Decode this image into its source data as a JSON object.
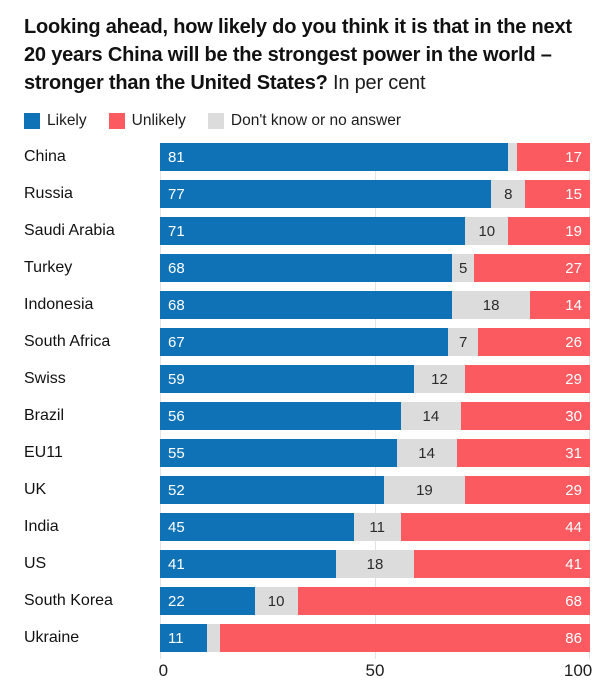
{
  "title": {
    "question": "Looking ahead, how likely do you think it is that in the next 20 years China will be the strongest power in the world – stronger than the United States?",
    "suffix": "In per cent"
  },
  "legend": {
    "items": [
      {
        "key": "likely",
        "label": "Likely",
        "color": "#0F72B7"
      },
      {
        "key": "unlikely",
        "label": "Unlikely",
        "color": "#FA5A60"
      },
      {
        "key": "dontknow",
        "label": "Don't know or no answer",
        "color": "#DCDCDC"
      }
    ]
  },
  "axis": {
    "ticks": [
      "0",
      "50",
      "100"
    ]
  },
  "chart_data": {
    "type": "bar",
    "orientation": "horizontal",
    "stacked": true,
    "unit": "per cent",
    "xlim": [
      0,
      100
    ],
    "grid_ticks": [
      0,
      50,
      100
    ],
    "legend_position": "top",
    "dontknow_label_min": 4,
    "categories": [
      "China",
      "Russia",
      "Saudi Arabia",
      "Turkey",
      "Indonesia",
      "South Africa",
      "Swiss",
      "Brazil",
      "EU11",
      "UK",
      "India",
      "US",
      "South Korea",
      "Ukraine"
    ],
    "series": [
      {
        "key": "likely",
        "name": "Likely",
        "color": "#0F72B7",
        "values": [
          81,
          77,
          71,
          68,
          68,
          67,
          59,
          56,
          55,
          52,
          45,
          41,
          22,
          11
        ]
      },
      {
        "key": "dontknow",
        "name": "Don't know or no answer",
        "color": "#DCDCDC",
        "values": [
          2,
          8,
          10,
          5,
          18,
          7,
          12,
          14,
          14,
          19,
          11,
          18,
          10,
          3
        ]
      },
      {
        "key": "unlikely",
        "name": "Unlikely",
        "color": "#FA5A60",
        "values": [
          17,
          15,
          19,
          27,
          14,
          26,
          29,
          30,
          31,
          29,
          44,
          41,
          68,
          86
        ]
      }
    ]
  }
}
